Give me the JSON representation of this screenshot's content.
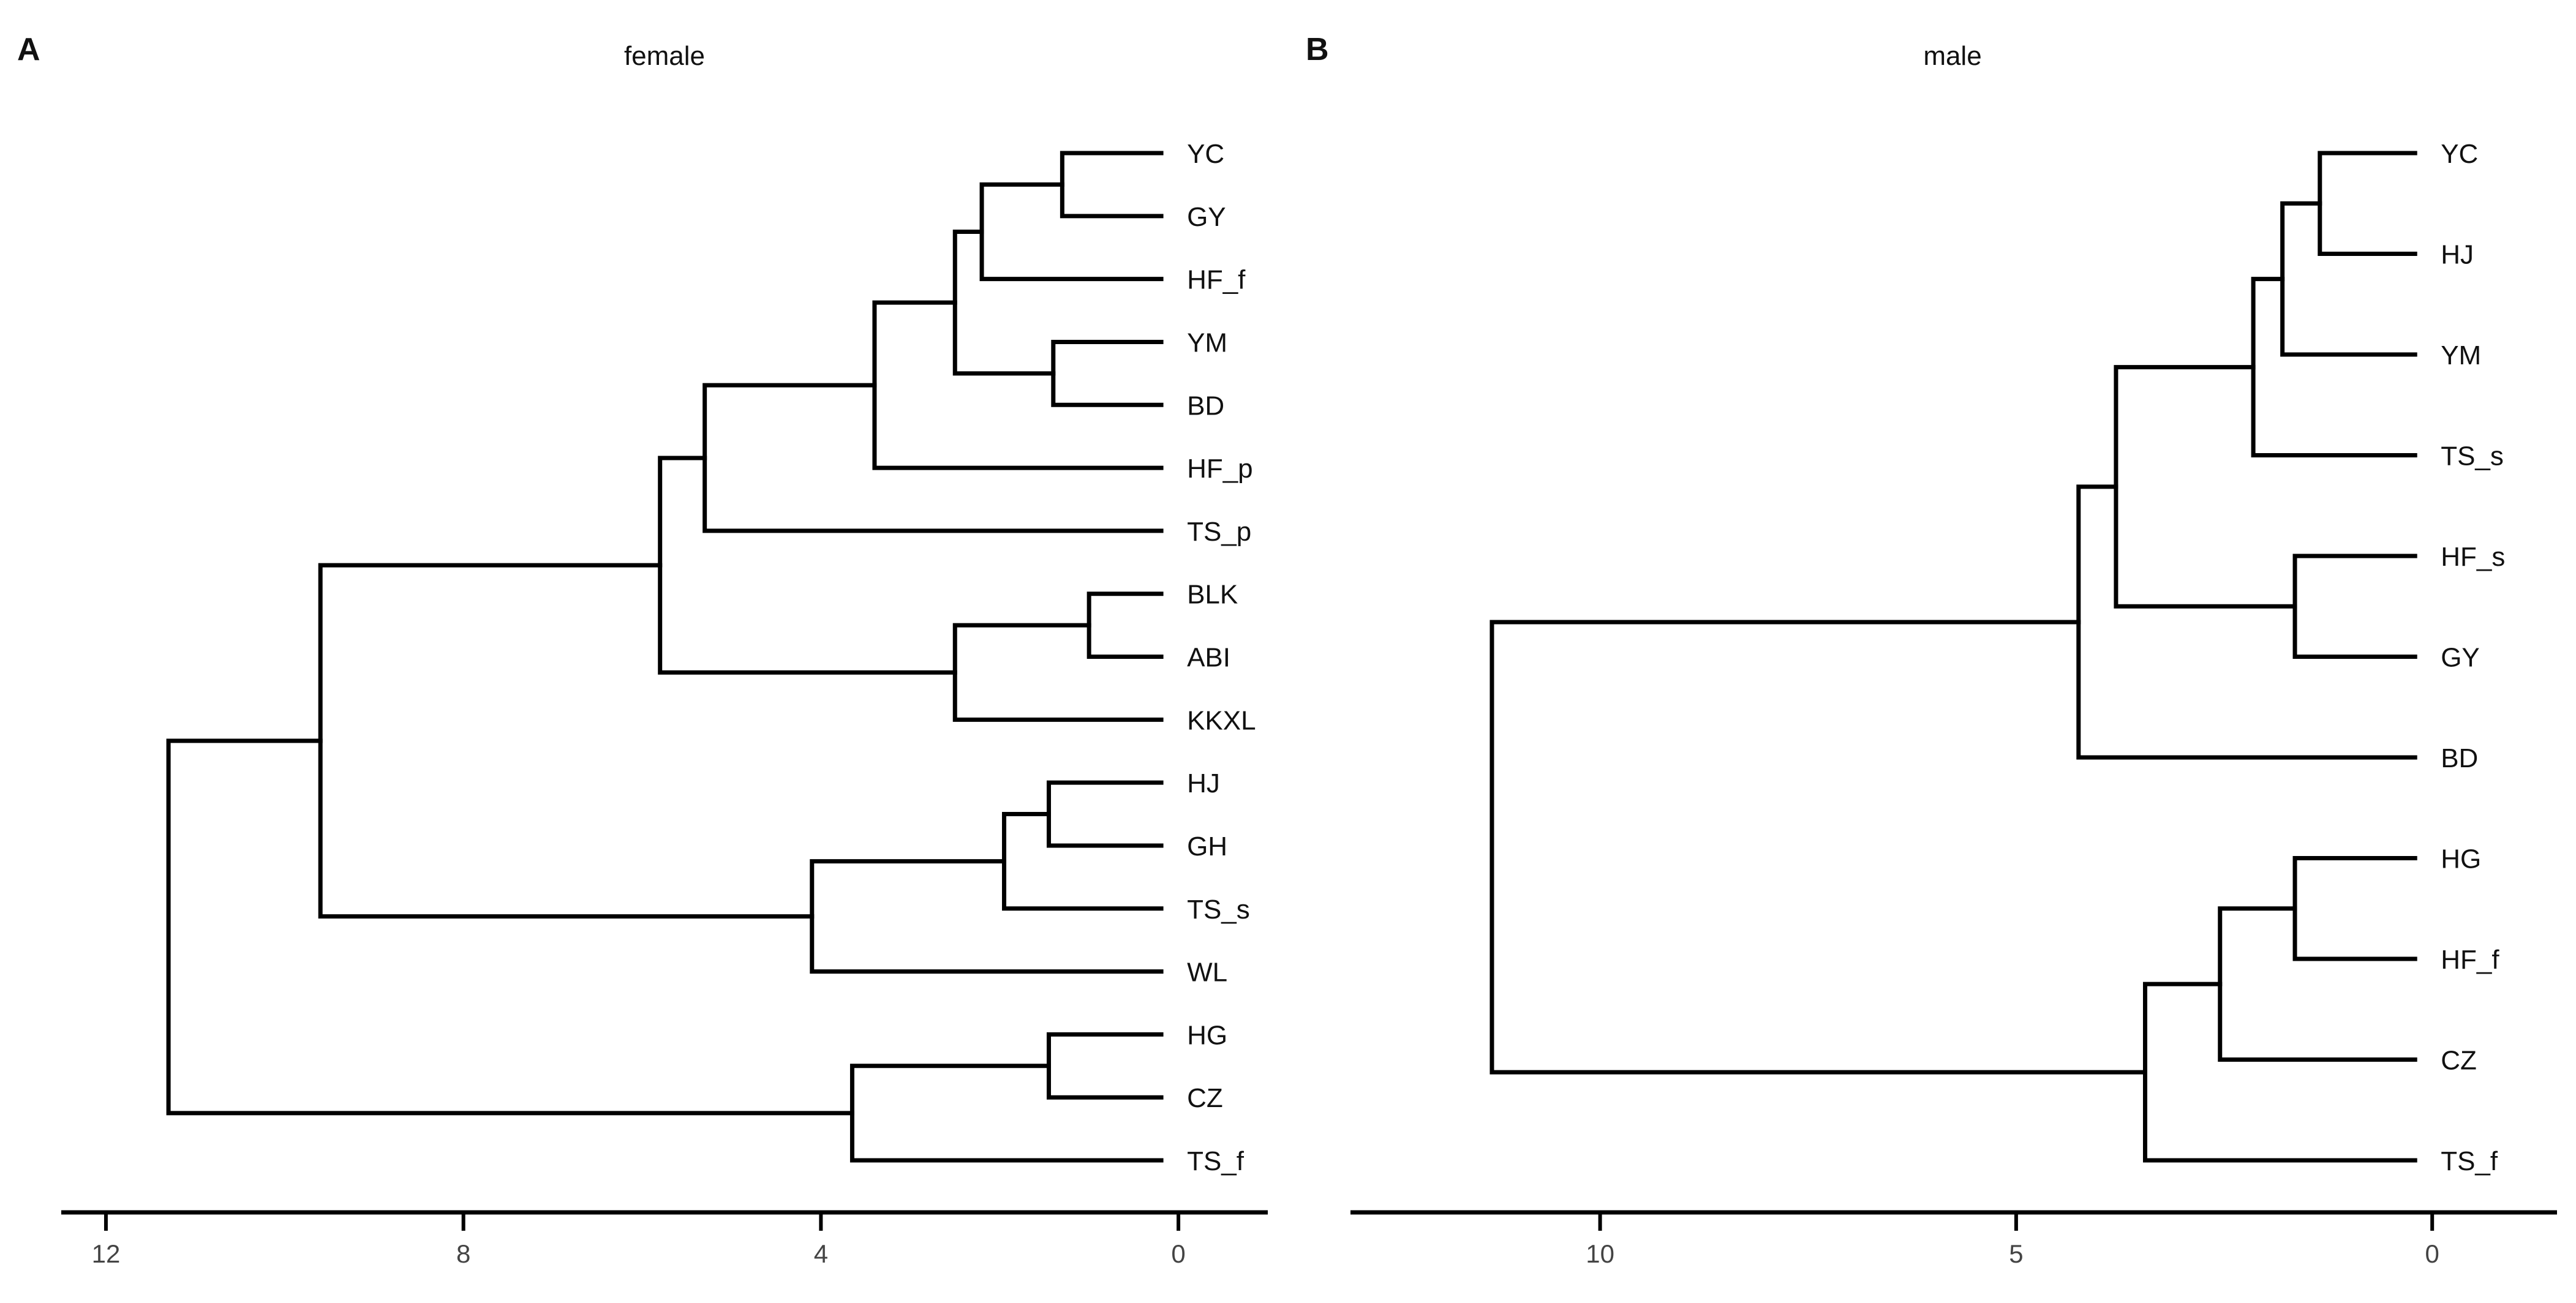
{
  "chart_data": [
    {
      "type": "dendrogram",
      "panel_label": "A",
      "title": "female",
      "xlabel": "",
      "ylabel": "",
      "axis_ticks": [
        12,
        8,
        4,
        0
      ],
      "xlim": [
        12.5,
        -1.0
      ],
      "grid": false,
      "leaves": [
        "YC",
        "GY",
        "HF_f",
        "YM",
        "BD",
        "HF_p",
        "TS_p",
        "BLK",
        "ABI",
        "KKXL",
        "HJ",
        "GH",
        "TS_s",
        "WL",
        "HG",
        "CZ",
        "TS_f"
      ],
      "merges": [
        {
          "id": "a1",
          "children": [
            "YC",
            "GY"
          ],
          "height": 1.3
        },
        {
          "id": "a2",
          "children": [
            "a1",
            "HF_f"
          ],
          "height": 2.2
        },
        {
          "id": "a3",
          "children": [
            "YM",
            "BD"
          ],
          "height": 1.4
        },
        {
          "id": "a4",
          "children": [
            "a2",
            "a3"
          ],
          "height": 2.5
        },
        {
          "id": "a5",
          "children": [
            "a4",
            "HF_p"
          ],
          "height": 3.4
        },
        {
          "id": "a6",
          "children": [
            "a5",
            "TS_p"
          ],
          "height": 5.3
        },
        {
          "id": "a7",
          "children": [
            "BLK",
            "ABI"
          ],
          "height": 1.0
        },
        {
          "id": "a8",
          "children": [
            "a7",
            "KKXL"
          ],
          "height": 2.5
        },
        {
          "id": "a9",
          "children": [
            "a6",
            "a8"
          ],
          "height": 5.8
        },
        {
          "id": "a10",
          "children": [
            "HJ",
            "GH"
          ],
          "height": 1.45
        },
        {
          "id": "a11",
          "children": [
            "a10",
            "TS_s"
          ],
          "height": 1.95
        },
        {
          "id": "a12",
          "children": [
            "a11",
            "WL"
          ],
          "height": 4.1
        },
        {
          "id": "a13",
          "children": [
            "a9",
            "a12"
          ],
          "height": 9.6
        },
        {
          "id": "a14",
          "children": [
            "HG",
            "CZ"
          ],
          "height": 1.45
        },
        {
          "id": "a15",
          "children": [
            "a14",
            "TS_f"
          ],
          "height": 3.65
        },
        {
          "id": "a16",
          "children": [
            "a13",
            "a15"
          ],
          "height": 11.3
        }
      ]
    },
    {
      "type": "dendrogram",
      "panel_label": "B",
      "title": "male",
      "xlabel": "",
      "ylabel": "",
      "axis_ticks": [
        10,
        5,
        0
      ],
      "xlim": [
        13.0,
        -1.5
      ],
      "grid": false,
      "leaves": [
        "YC",
        "HJ",
        "YM",
        "TS_s",
        "HF_s",
        "GY",
        "BD",
        "HG",
        "HF_f",
        "CZ",
        "TS_f"
      ],
      "merges": [
        {
          "id": "b1",
          "children": [
            "YC",
            "HJ"
          ],
          "height": 1.35
        },
        {
          "id": "b2",
          "children": [
            "b1",
            "YM"
          ],
          "height": 1.8
        },
        {
          "id": "b3",
          "children": [
            "b2",
            "TS_s"
          ],
          "height": 2.15
        },
        {
          "id": "b4",
          "children": [
            "HF_s",
            "GY"
          ],
          "height": 1.65
        },
        {
          "id": "b5",
          "children": [
            "b3",
            "b4"
          ],
          "height": 3.8
        },
        {
          "id": "b6",
          "children": [
            "b5",
            "BD"
          ],
          "height": 4.25
        },
        {
          "id": "b7",
          "children": [
            "HG",
            "HF_f"
          ],
          "height": 1.65
        },
        {
          "id": "b8",
          "children": [
            "b7",
            "CZ"
          ],
          "height": 2.55
        },
        {
          "id": "b9",
          "children": [
            "b8",
            "TS_f"
          ],
          "height": 3.45
        },
        {
          "id": "b10",
          "children": [
            "b6",
            "b9"
          ],
          "height": 11.3
        }
      ]
    }
  ]
}
